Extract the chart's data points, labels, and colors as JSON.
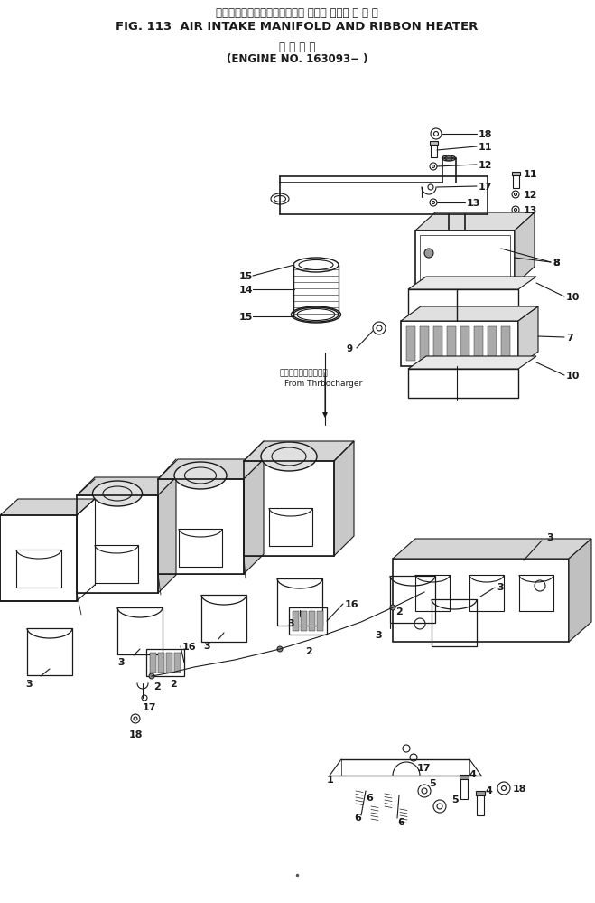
{
  "title_jp": "エアーインテークマニホールド および リボン ヒ ー タ",
  "title_en": "FIG. 113  AIR INTAKE MANIFOLD AND RIBBON HEATER",
  "subtitle_jp": "適 用 号 機",
  "subtitle_en": "(ENGINE NO. 163093− )",
  "turbo_jp": "ターボチャージゃから",
  "turbo_en": "From Thrbocharger",
  "bg": "#ffffff",
  "lc": "#1a1a1a"
}
